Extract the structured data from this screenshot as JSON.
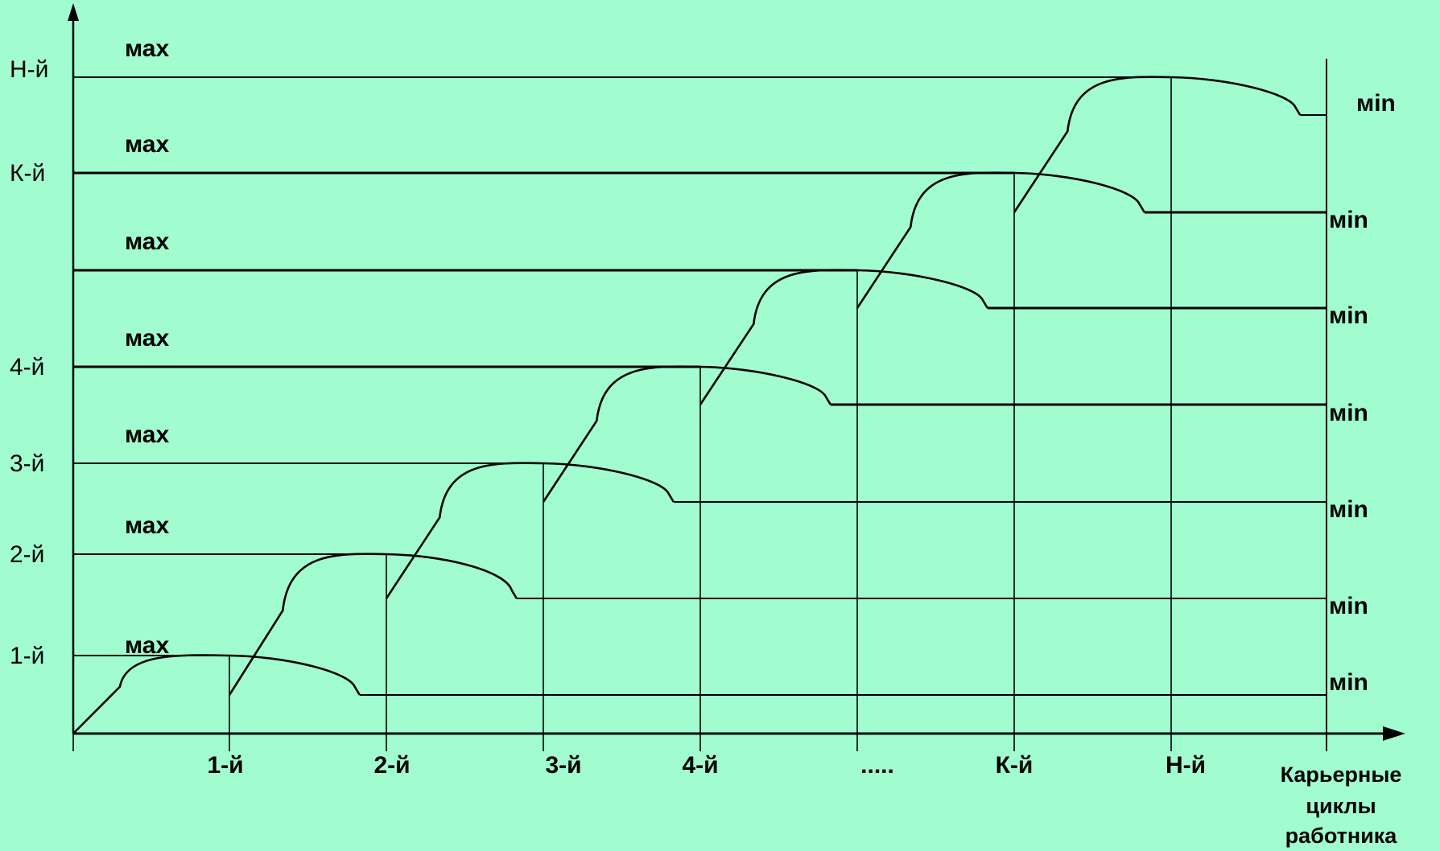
{
  "y_axis": {
    "levels": [
      {
        "label": "1-й",
        "max": "мах",
        "min": "мin"
      },
      {
        "label": "2-й",
        "max": "мах",
        "min": "мin"
      },
      {
        "label": "3-й",
        "max": "мах",
        "min": "мin"
      },
      {
        "label": "4-й",
        "max": "мах",
        "min": "мin"
      },
      {
        "label": "",
        "max": "мах",
        "min": "мin"
      },
      {
        "label": "К-й",
        "max": "мах",
        "min": "мin"
      },
      {
        "label": "Н-й",
        "max": "мах",
        "min": "мin"
      }
    ]
  },
  "x_axis": {
    "ticks": [
      "1-й",
      "2-й",
      "3-й",
      "4-й",
      ".....",
      "К-й",
      "Н-й"
    ],
    "caption": [
      "Карьерные",
      "циклы",
      "работника"
    ]
  },
  "colors": {
    "background": "#a1fcd0",
    "line": "#000000"
  }
}
